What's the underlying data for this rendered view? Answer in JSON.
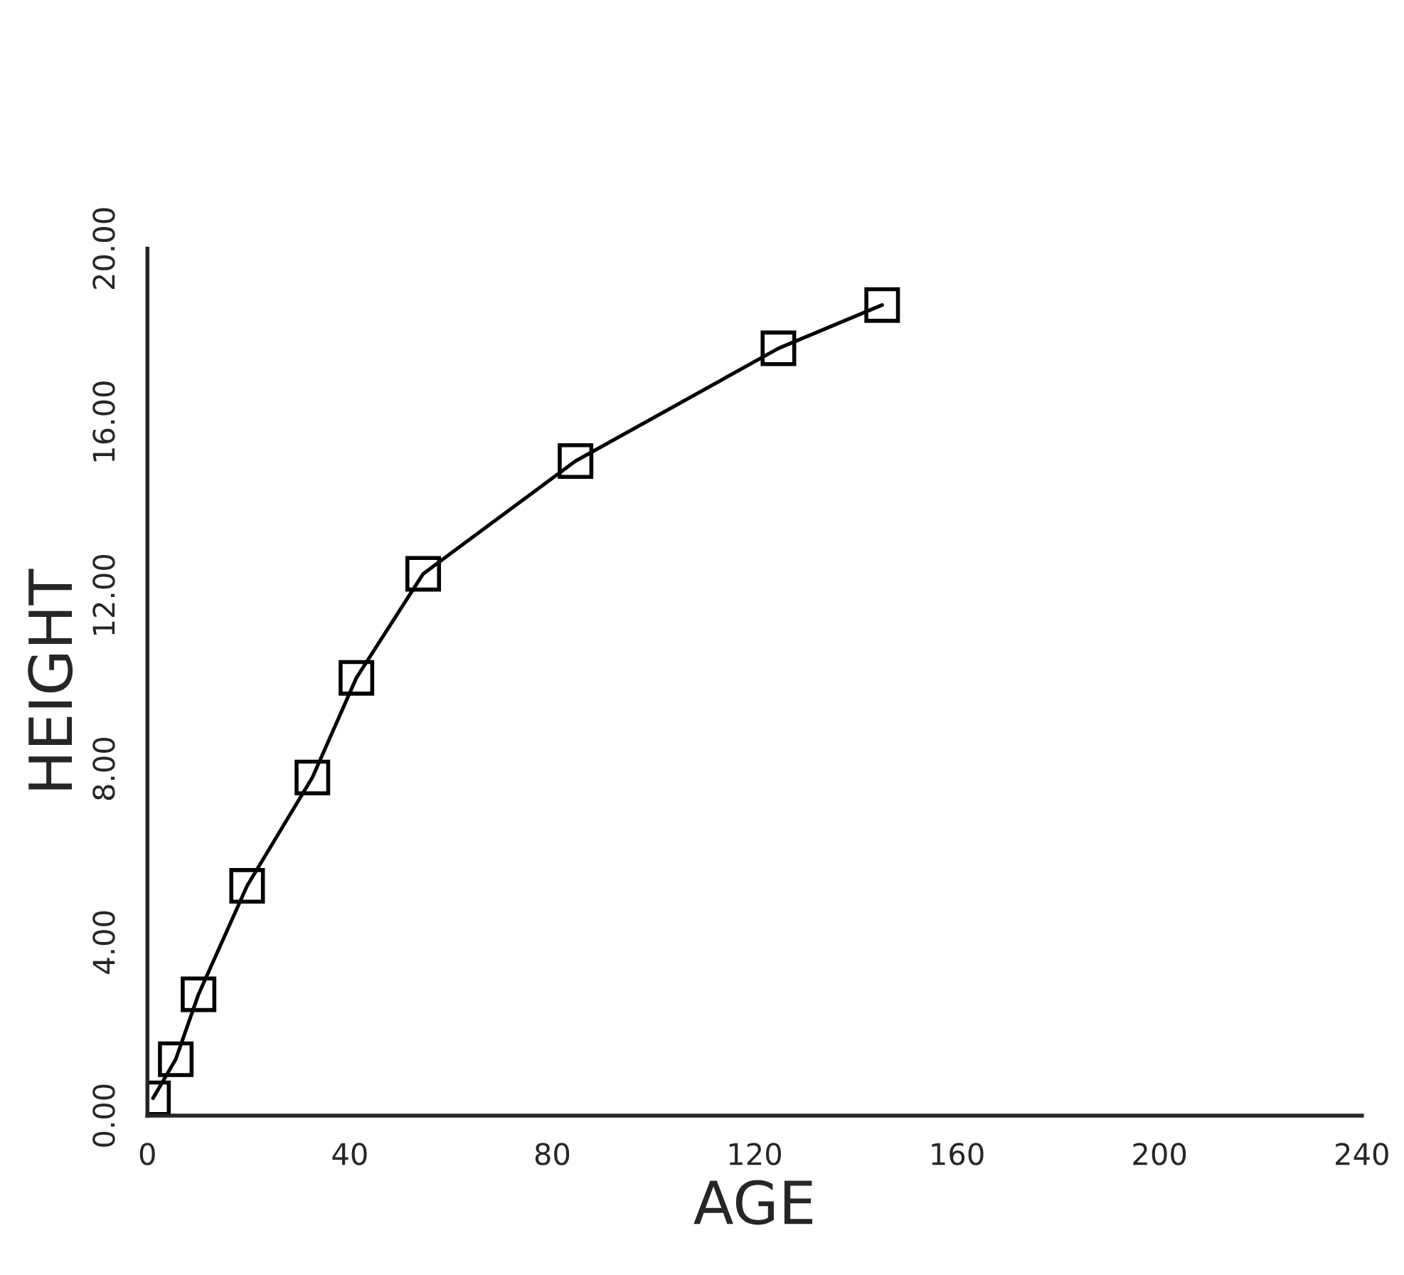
{
  "chart_data": {
    "type": "line",
    "xlabel": "AGE",
    "ylabel": "HEIGHT",
    "x": [
      1.1,
      5.6,
      10.1,
      19.7,
      32.6,
      41.3,
      54.5,
      84.6,
      124.7,
      145.2
    ],
    "series": [
      {
        "color": "#000000",
        "values": [
          0.4,
          1.3,
          2.8,
          5.3,
          7.8,
          10.1,
          12.5,
          15.1,
          17.7,
          18.7
        ]
      }
    ],
    "marker": "square",
    "line_style": "solid",
    "grid": false,
    "legend": false,
    "xlim": [
      0,
      240
    ],
    "xticks": [
      0,
      40,
      80,
      120,
      160,
      200,
      240
    ],
    "ylim": [
      0,
      20
    ],
    "yticks": [
      {
        "value": 0,
        "label": "0.00"
      },
      {
        "value": 4,
        "label": "4.00"
      },
      {
        "value": 8,
        "label": "8.00"
      },
      {
        "value": 12,
        "label": "12.00"
      },
      {
        "value": 16,
        "label": "16.00"
      },
      {
        "value": 20,
        "label": "20.00"
      }
    ]
  }
}
